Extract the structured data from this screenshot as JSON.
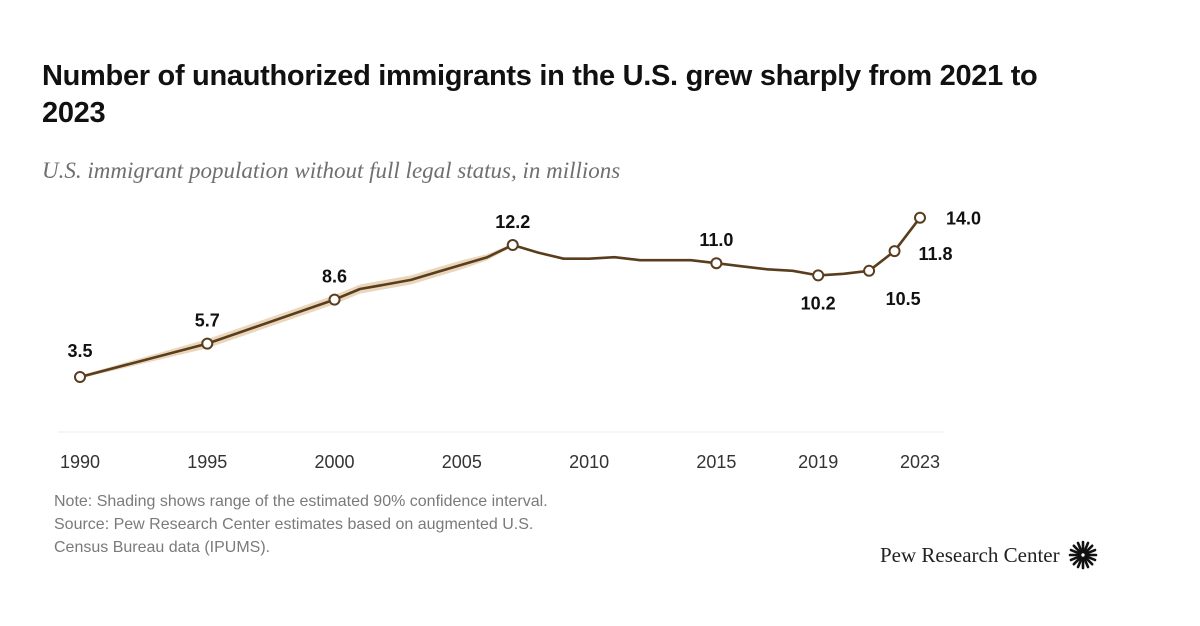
{
  "header": {
    "title": "Number of unauthorized immigrants in the U.S. grew sharply from 2021 to 2023",
    "subtitle": "U.S. immigrant population without full legal status, in millions"
  },
  "footer": {
    "note": "Note: Shading shows range of the estimated 90% confidence interval.",
    "source_line1": "Source: Pew Research Center estimates based on augmented U.S.",
    "source_line2": "Census Bureau data (IPUMS).",
    "brand": "Pew Research Center",
    "brand_icon": "sunburst-logo-icon"
  },
  "colors": {
    "line": "#5a3d1e",
    "band": "#e6cfae",
    "marker_fill": "#ffffff",
    "axis_labels": "#333333",
    "data_labels": "#111111"
  },
  "chart_data": {
    "type": "line",
    "title": "Number of unauthorized immigrants in the U.S. grew sharply from 2021 to 2023",
    "subtitle": "U.S. immigrant population without full legal status, in millions",
    "xlabel": "",
    "ylabel": "",
    "xlim": [
      1990,
      2023
    ],
    "ylim": [
      0,
      14.5
    ],
    "grid": false,
    "legend": "none",
    "x_ticks": [
      "1990",
      "1995",
      "2000",
      "2005",
      "2010",
      "2015",
      "2019",
      "2023"
    ],
    "series": [
      {
        "name": "Unauthorized immigrant population (millions)",
        "x": [
          1990,
          1995,
          2000,
          2001,
          2002,
          2003,
          2004,
          2005,
          2006,
          2007,
          2008,
          2009,
          2010,
          2011,
          2012,
          2013,
          2014,
          2015,
          2016,
          2017,
          2018,
          2019,
          2020,
          2021,
          2022,
          2023
        ],
        "y": [
          3.5,
          5.7,
          8.6,
          9.3,
          9.6,
          9.9,
          10.4,
          10.9,
          11.4,
          12.2,
          11.7,
          11.3,
          11.3,
          11.4,
          11.2,
          11.2,
          11.2,
          11.0,
          10.8,
          10.6,
          10.5,
          10.2,
          10.3,
          10.5,
          11.8,
          14.0
        ],
        "markers": [
          1990,
          1995,
          2000,
          2007,
          2015,
          2019,
          2021,
          2022,
          2023
        ],
        "confidence_band": {
          "x": [
            1990,
            1995,
            2000,
            2001,
            2002,
            2003,
            2004,
            2005,
            2006,
            2007
          ],
          "lower": [
            3.4,
            5.4,
            8.3,
            9.0,
            9.3,
            9.6,
            10.1,
            10.6,
            11.2,
            12.1
          ],
          "upper": [
            3.6,
            6.0,
            8.9,
            9.6,
            9.9,
            10.2,
            10.7,
            11.2,
            11.6,
            12.3
          ]
        }
      }
    ],
    "data_labels": [
      {
        "x": 1990,
        "value": "3.5",
        "pos": "above"
      },
      {
        "x": 1995,
        "value": "5.7",
        "pos": "above"
      },
      {
        "x": 2000,
        "value": "8.6",
        "pos": "above"
      },
      {
        "x": 2007,
        "value": "12.2",
        "pos": "above"
      },
      {
        "x": 2015,
        "value": "11.0",
        "pos": "above"
      },
      {
        "x": 2019,
        "value": "10.2",
        "pos": "below"
      },
      {
        "x": 2021,
        "value": "10.5",
        "pos": "below-right"
      },
      {
        "x": 2022,
        "value": "11.8",
        "pos": "right"
      },
      {
        "x": 2023,
        "value": "14.0",
        "pos": "right"
      }
    ]
  }
}
